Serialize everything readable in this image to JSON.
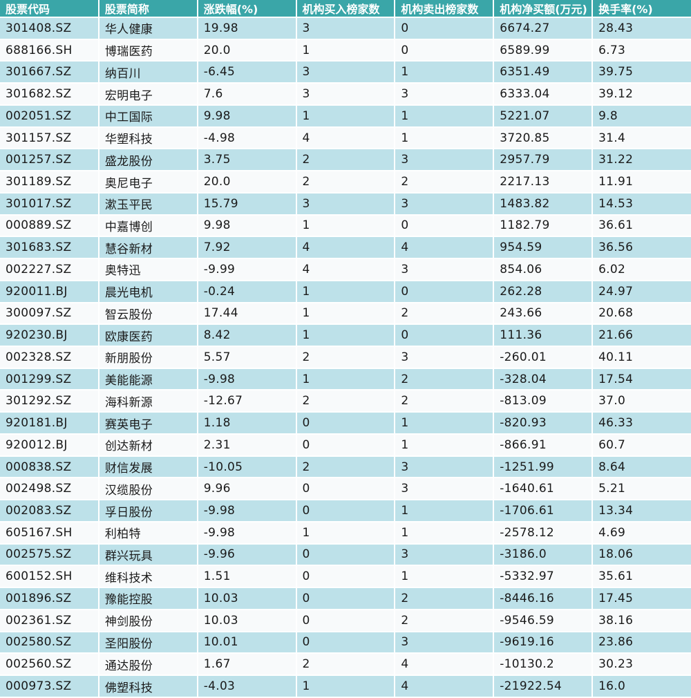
{
  "colors": {
    "header_bg": "#3aa6a8",
    "header_text": "#ffffff",
    "row_alt_bg": "#bde1e9",
    "row_bg": "#f8fafb",
    "cell_text": "#1a1a1a",
    "grid_line": "#ffffff"
  },
  "chart_data": {
    "type": "table",
    "columns": [
      "股票代码",
      "股票简称",
      "涨跌幅(%)",
      "机构买入榜家数",
      "机构卖出榜家数",
      "机构净买额(万元)",
      "换手率(%)"
    ],
    "rows": [
      [
        "301408.SZ",
        "华人健康",
        "19.98",
        "3",
        "0",
        "6674.27",
        "28.43"
      ],
      [
        "688166.SH",
        "博瑞医药",
        "20.0",
        "1",
        "0",
        "6589.99",
        "6.73"
      ],
      [
        "301667.SZ",
        "纳百川",
        "-6.45",
        "3",
        "1",
        "6351.49",
        "39.75"
      ],
      [
        "301682.SZ",
        "宏明电子",
        "7.6",
        "3",
        "3",
        "6333.04",
        "39.12"
      ],
      [
        "002051.SZ",
        "中工国际",
        "9.98",
        "1",
        "1",
        "5221.07",
        "9.8"
      ],
      [
        "301157.SZ",
        "华塑科技",
        "-4.98",
        "4",
        "1",
        "3720.85",
        "31.4"
      ],
      [
        "001257.SZ",
        "盛龙股份",
        "3.75",
        "2",
        "3",
        "2957.79",
        "31.22"
      ],
      [
        "301189.SZ",
        "奥尼电子",
        "20.0",
        "2",
        "2",
        "2217.13",
        "11.91"
      ],
      [
        "301017.SZ",
        "漱玉平民",
        "15.79",
        "3",
        "3",
        "1483.82",
        "14.53"
      ],
      [
        "000889.SZ",
        "中嘉博创",
        "9.98",
        "1",
        "0",
        "1182.79",
        "36.61"
      ],
      [
        "301683.SZ",
        "慧谷新材",
        "7.92",
        "4",
        "4",
        "954.59",
        "36.56"
      ],
      [
        "002227.SZ",
        "奥特迅",
        "-9.99",
        "4",
        "3",
        "854.06",
        "6.02"
      ],
      [
        "920011.BJ",
        "晨光电机",
        "-0.24",
        "1",
        "0",
        "262.28",
        "24.97"
      ],
      [
        "300097.SZ",
        "智云股份",
        "17.44",
        "1",
        "2",
        "243.66",
        "20.68"
      ],
      [
        "920230.BJ",
        "欧康医药",
        "8.42",
        "1",
        "0",
        "111.36",
        "21.66"
      ],
      [
        "002328.SZ",
        "新朋股份",
        "5.57",
        "2",
        "3",
        "-260.01",
        "40.11"
      ],
      [
        "001299.SZ",
        "美能能源",
        "-9.98",
        "1",
        "2",
        "-328.04",
        "17.54"
      ],
      [
        "301292.SZ",
        "海科新源",
        "-12.67",
        "2",
        "2",
        "-813.09",
        "37.0"
      ],
      [
        "920181.BJ",
        "赛英电子",
        "1.18",
        "0",
        "1",
        "-820.93",
        "46.33"
      ],
      [
        "920012.BJ",
        "创达新材",
        "2.31",
        "0",
        "1",
        "-866.91",
        "60.7"
      ],
      [
        "000838.SZ",
        "财信发展",
        "-10.05",
        "2",
        "3",
        "-1251.99",
        "8.64"
      ],
      [
        "002498.SZ",
        "汉缆股份",
        "9.96",
        "0",
        "3",
        "-1640.61",
        "5.21"
      ],
      [
        "002083.SZ",
        "孚日股份",
        "-9.98",
        "0",
        "1",
        "-1706.61",
        "13.34"
      ],
      [
        "605167.SH",
        "利柏特",
        "-9.98",
        "1",
        "1",
        "-2578.12",
        "4.69"
      ],
      [
        "002575.SZ",
        "群兴玩具",
        "-9.96",
        "0",
        "3",
        "-3186.0",
        "18.06"
      ],
      [
        "600152.SH",
        "维科技术",
        "1.51",
        "0",
        "1",
        "-5332.97",
        "35.61"
      ],
      [
        "001896.SZ",
        "豫能控股",
        "10.03",
        "0",
        "2",
        "-8446.16",
        "17.45"
      ],
      [
        "002361.SZ",
        "神剑股份",
        "10.03",
        "0",
        "2",
        "-9546.59",
        "38.16"
      ],
      [
        "002580.SZ",
        "圣阳股份",
        "10.01",
        "0",
        "3",
        "-9619.16",
        "23.86"
      ],
      [
        "002560.SZ",
        "通达股份",
        "1.67",
        "2",
        "4",
        "-10130.2",
        "30.23"
      ],
      [
        "000973.SZ",
        "佛塑科技",
        "-4.03",
        "1",
        "4",
        "-21922.54",
        "16.0"
      ]
    ]
  }
}
